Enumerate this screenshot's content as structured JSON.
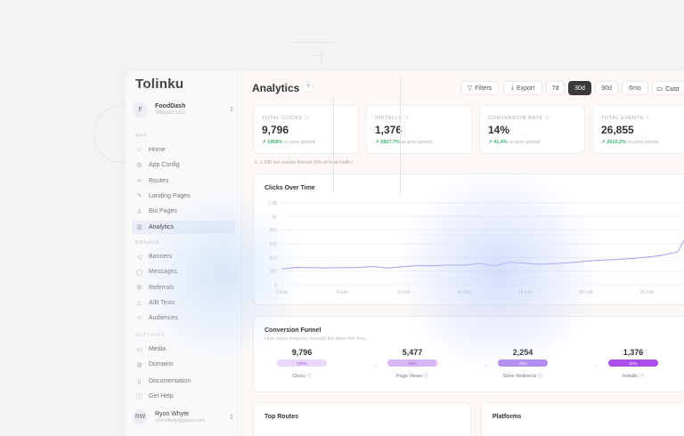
{
  "sidebar": {
    "logo": "Tolinku",
    "org": {
      "initial": "F",
      "name": "FoodDash",
      "sub": "Sitepact LLC"
    },
    "sections": {
      "app": "APP",
      "engage": "ENGAGE",
      "settings": "SETTINGS"
    },
    "app_items": [
      {
        "label": "Home",
        "icon": "home-icon"
      },
      {
        "label": "App Config",
        "icon": "gear-icon"
      },
      {
        "label": "Routes",
        "icon": "link-icon"
      },
      {
        "label": "Landing Pages",
        "icon": "pen-icon"
      },
      {
        "label": "Bio Pages",
        "icon": "user-icon"
      },
      {
        "label": "Analytics",
        "icon": "bar-chart-icon",
        "active": true
      }
    ],
    "engage_items": [
      {
        "label": "Banners",
        "icon": "megaphone-icon"
      },
      {
        "label": "Messages",
        "icon": "message-icon"
      },
      {
        "label": "Referrals",
        "icon": "gift-icon"
      },
      {
        "label": "A/B Tests",
        "icon": "flask-icon"
      },
      {
        "label": "Audiences",
        "icon": "users-icon"
      }
    ],
    "settings_items": [
      {
        "label": "Media",
        "icon": "image-icon"
      },
      {
        "label": "Domains",
        "icon": "globe-icon"
      }
    ],
    "footer_items": [
      {
        "label": "Documentation",
        "icon": "book-icon"
      },
      {
        "label": "Get Help",
        "icon": "help-icon"
      }
    ],
    "user": {
      "initials": "RW",
      "name": "Ryon Whyte",
      "email": "ryonwhyte@gmail.com"
    }
  },
  "header": {
    "title": "Analytics",
    "help": "?",
    "filters": "Filters",
    "export": "Export",
    "ranges": [
      "7d",
      "30d",
      "90d",
      "6mo"
    ],
    "selected_range": "30d",
    "custom": "Cust"
  },
  "kpis": [
    {
      "label": "TOTAL CLICKS",
      "value": "9,796",
      "delta": "1958%",
      "suffix": "vs prev period"
    },
    {
      "label": "INSTALLS",
      "value": "1,376",
      "delta": "2827.7%",
      "suffix": "vs prev period"
    },
    {
      "label": "CONVERSION RATE",
      "value": "14%",
      "delta": "41.4%",
      "suffix": "vs prev period"
    },
    {
      "label": "TOTAL EVENTS",
      "value": "26,855",
      "delta": "2016.2%",
      "suffix": "vs prev period"
    }
  ],
  "bot_note": "1,395 bot events filtered (5% of total traffic)",
  "chart_data": {
    "type": "line",
    "title": "Clicks Over Time",
    "ylim": [
      0,
      1200
    ],
    "yticks": [
      "0",
      "200",
      "400",
      "600",
      "800",
      "1K",
      "1.2K"
    ],
    "xticks": [
      "2 Feb",
      "6 Feb",
      "10 Feb",
      "14 Feb",
      "18 Feb",
      "22 Feb",
      "26 Feb"
    ],
    "x": [
      "2 Feb",
      "3 Feb",
      "4 Feb",
      "5 Feb",
      "6 Feb",
      "7 Feb",
      "8 Feb",
      "9 Feb",
      "10 Feb",
      "11 Feb",
      "12 Feb",
      "13 Feb",
      "14 Feb",
      "15 Feb",
      "16 Feb",
      "17 Feb",
      "18 Feb",
      "19 Feb",
      "20 Feb",
      "21 Feb",
      "22 Feb",
      "23 Feb",
      "24 Feb",
      "25 Feb",
      "26 Feb",
      "27 Feb",
      "28 Feb",
      "1 Mar"
    ],
    "values": [
      230,
      255,
      250,
      248,
      250,
      252,
      268,
      245,
      265,
      278,
      278,
      288,
      285,
      315,
      275,
      330,
      315,
      300,
      310,
      325,
      345,
      360,
      370,
      385,
      405,
      430,
      480,
      860
    ],
    "color": "#a99af0",
    "grid": true
  },
  "funnel": {
    "title": "Conversion Funnel",
    "subtitle": "How users progress through the deep link flow.",
    "steps": [
      {
        "value": "9,796",
        "pct": "100%",
        "label": "Clicks",
        "color": "#ead8fb"
      },
      {
        "value": "5,477",
        "pct": "56%",
        "label": "Page Views",
        "color": "#d7b5f7"
      },
      {
        "value": "2,254",
        "pct": "41%",
        "label": "Store Redirects",
        "color": "#b48af0"
      },
      {
        "value": "1,376",
        "pct": "61%",
        "label": "Installs",
        "color": "#a94de8"
      }
    ]
  },
  "top_routes": {
    "title": "Top Routes"
  },
  "platforms": {
    "title": "Platforms"
  }
}
